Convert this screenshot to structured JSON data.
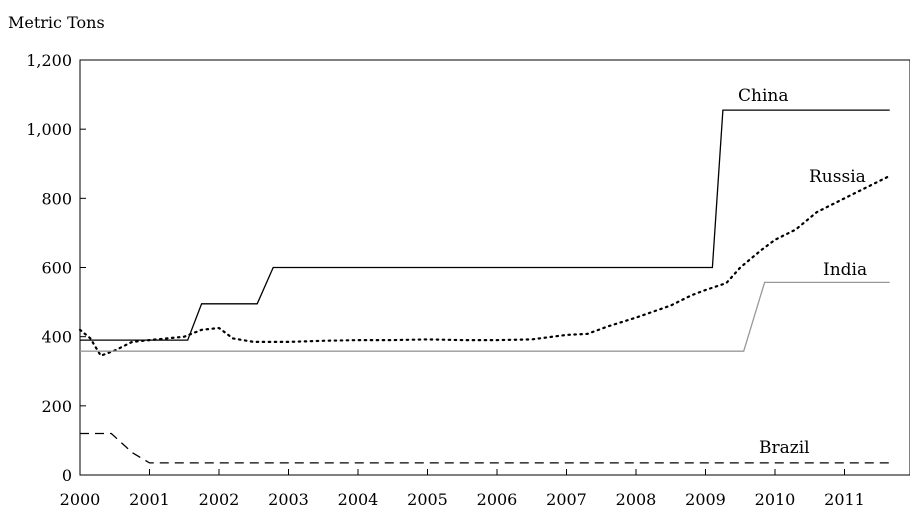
{
  "chart_data": {
    "type": "line",
    "title": "",
    "ylabel": "Metric Tons",
    "xlabel": "",
    "xlim": [
      2000,
      2011.65
    ],
    "ylim": [
      0,
      1200
    ],
    "x_ticks": [
      "2000",
      "2001",
      "2002",
      "2003",
      "2004",
      "2005",
      "2006",
      "2007",
      "2008",
      "2009",
      "2010",
      "2011"
    ],
    "y_ticks": [
      "0",
      "200",
      "400",
      "600",
      "800",
      "1,000",
      "1,200"
    ],
    "y_tick_values": [
      0,
      200,
      400,
      600,
      800,
      1000,
      1200
    ],
    "grid": false,
    "legend": "none (direct labels)",
    "series": [
      {
        "name": "China",
        "color": "#000000",
        "style": "solid",
        "x": [
          2000,
          2001.55,
          2001.75,
          2002.55,
          2002.78,
          2009.1,
          2009.25,
          2011.65
        ],
        "values": [
          390,
          390,
          495,
          495,
          600,
          600,
          1055,
          1055
        ]
      },
      {
        "name": "Russia",
        "color": "#000000",
        "style": "dotted",
        "x": [
          2000,
          2000.15,
          2000.3,
          2000.5,
          2000.75,
          2001,
          2001.25,
          2001.5,
          2001.75,
          2002,
          2002.2,
          2002.5,
          2003,
          2003.5,
          2004,
          2004.5,
          2005,
          2005.5,
          2006,
          2006.5,
          2007,
          2007.3,
          2007.6,
          2008,
          2008.5,
          2008.8,
          2009,
          2009.3,
          2009.5,
          2009.8,
          2010,
          2010.3,
          2010.6,
          2011,
          2011.3,
          2011.65
        ],
        "values": [
          420,
          395,
          345,
          360,
          385,
          390,
          395,
          400,
          420,
          425,
          395,
          385,
          385,
          388,
          390,
          390,
          392,
          390,
          390,
          392,
          405,
          408,
          430,
          455,
          490,
          520,
          535,
          555,
          600,
          650,
          680,
          710,
          760,
          800,
          830,
          865
        ]
      },
      {
        "name": "India",
        "color": "#999999",
        "style": "solid",
        "x": [
          2000,
          2009.55,
          2009.85,
          2011.65
        ],
        "values": [
          358,
          358,
          557,
          557
        ]
      },
      {
        "name": "Brazil",
        "color": "#000000",
        "style": "dashed",
        "x": [
          2000,
          2000.45,
          2000.75,
          2001,
          2001.5,
          2011.65
        ],
        "values": [
          120,
          120,
          65,
          35,
          35,
          35
        ]
      }
    ],
    "series_labels": {
      "China": "China",
      "Russia": "Russia",
      "India": "India",
      "Brazil": "Brazil"
    }
  }
}
